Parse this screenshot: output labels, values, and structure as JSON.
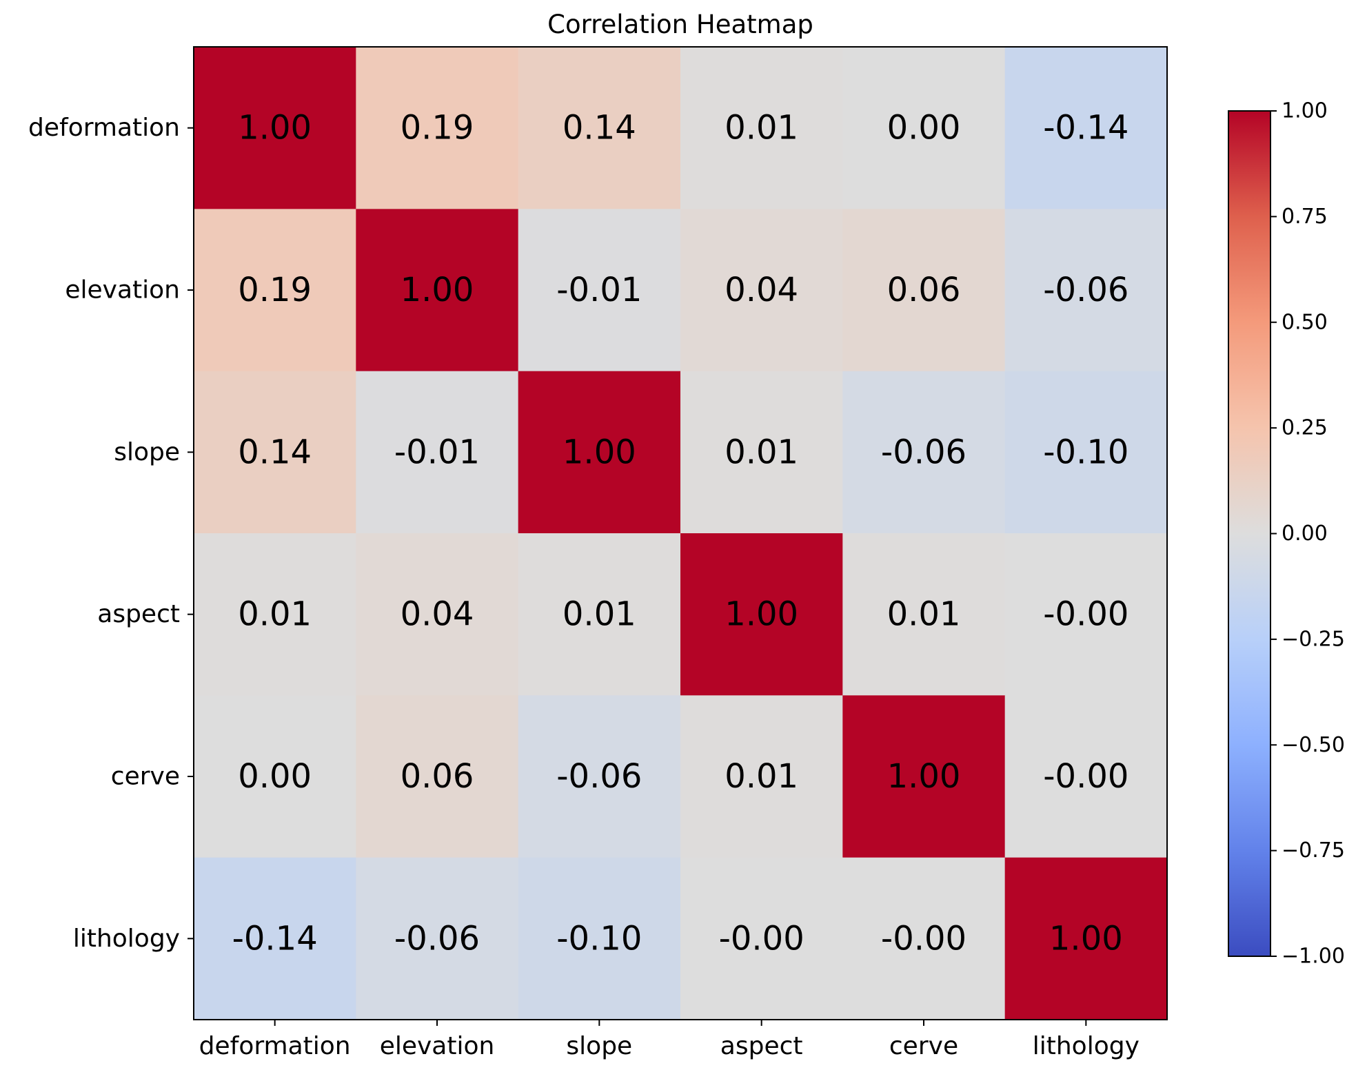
{
  "chart_data": {
    "type": "heatmap",
    "title": "Correlation Heatmap",
    "x_labels": [
      "deformation",
      "elevation",
      "slope",
      "aspect",
      "cerve",
      "lithology"
    ],
    "y_labels": [
      "deformation",
      "elevation",
      "slope",
      "aspect",
      "cerve",
      "lithology"
    ],
    "values": [
      [
        1.0,
        0.19,
        0.14,
        0.01,
        0.0,
        -0.14
      ],
      [
        0.19,
        1.0,
        -0.01,
        0.04,
        0.06,
        -0.06
      ],
      [
        0.14,
        -0.01,
        1.0,
        0.01,
        -0.06,
        -0.1
      ],
      [
        0.01,
        0.04,
        0.01,
        1.0,
        0.01,
        -0.0
      ],
      [
        0.0,
        0.06,
        -0.06,
        0.01,
        1.0,
        -0.0
      ],
      [
        -0.14,
        -0.06,
        -0.1,
        -0.0,
        -0.0,
        1.0
      ]
    ],
    "cell_text": [
      [
        "1.00",
        "0.19",
        "0.14",
        "0.01",
        "0.00",
        "-0.14"
      ],
      [
        "0.19",
        "1.00",
        "-0.01",
        "0.04",
        "0.06",
        "-0.06"
      ],
      [
        "0.14",
        "-0.01",
        "1.00",
        "0.01",
        "-0.06",
        "-0.10"
      ],
      [
        "0.01",
        "0.04",
        "0.01",
        "1.00",
        "0.01",
        "-0.00"
      ],
      [
        "0.00",
        "0.06",
        "-0.06",
        "0.01",
        "1.00",
        "-0.00"
      ],
      [
        "-0.14",
        "-0.06",
        "-0.10",
        "-0.00",
        "-0.00",
        "1.00"
      ]
    ],
    "colormap": "coolwarm",
    "vmin": -1.0,
    "vmax": 1.0,
    "colorbar_ticks": [
      1.0,
      0.75,
      0.5,
      0.25,
      0.0,
      -0.25,
      -0.5,
      -0.75,
      -1.0
    ],
    "colorbar_tick_labels": [
      "1.00",
      "0.75",
      "0.50",
      "0.25",
      "0.00",
      "−0.25",
      "−0.50",
      "−0.75",
      "−1.00"
    ],
    "colorbar_placement": "right",
    "grid": false
  }
}
